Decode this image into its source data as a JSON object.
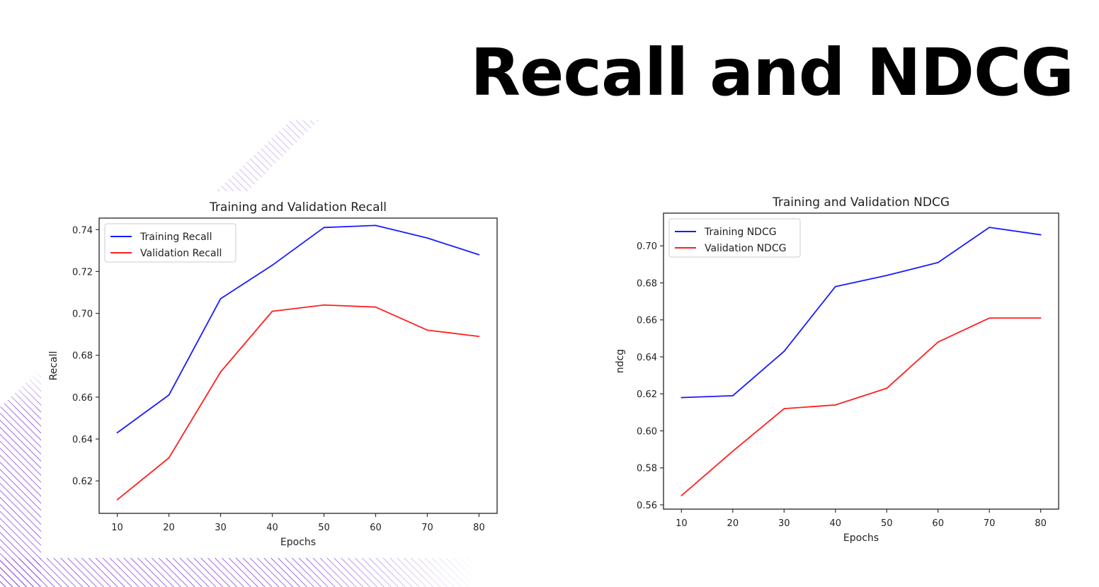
{
  "slide": {
    "title": "Recall and NDCG"
  },
  "colors": {
    "training": "#1a1aff",
    "validation": "#ff2020",
    "decoration_stripes": "#7a2ee0"
  },
  "chart_data": [
    {
      "type": "line",
      "title": "Training and Validation Recall",
      "xlabel": "Epochs",
      "ylabel": "Recall",
      "x": [
        10,
        20,
        30,
        40,
        50,
        60,
        70,
        80
      ],
      "xticks": [
        "10",
        "20",
        "30",
        "40",
        "50",
        "60",
        "70",
        "80"
      ],
      "xlim": [
        6.5,
        83.5
      ],
      "yticks": [
        "0.62",
        "0.64",
        "0.66",
        "0.68",
        "0.70",
        "0.72",
        "0.74"
      ],
      "ylim": [
        0.6045,
        0.7455
      ],
      "grid": false,
      "legend_position": "top-left",
      "series": [
        {
          "name": "Training Recall",
          "color": "#1a1aff",
          "values": [
            0.643,
            0.661,
            0.707,
            0.723,
            0.741,
            0.742,
            0.736,
            0.728
          ]
        },
        {
          "name": "Validation Recall",
          "color": "#ff2020",
          "values": [
            0.611,
            0.631,
            0.672,
            0.701,
            0.704,
            0.703,
            0.692,
            0.689
          ]
        }
      ]
    },
    {
      "type": "line",
      "title": "Training and Validation NDCG",
      "xlabel": "Epochs",
      "ylabel": "ndcg",
      "x": [
        10,
        20,
        30,
        40,
        50,
        60,
        70,
        80
      ],
      "xticks": [
        "10",
        "20",
        "30",
        "40",
        "50",
        "60",
        "70",
        "80"
      ],
      "xlim": [
        6.5,
        83.5
      ],
      "yticks": [
        "0.56",
        "0.58",
        "0.60",
        "0.62",
        "0.64",
        "0.66",
        "0.68",
        "0.70"
      ],
      "ylim": [
        0.5577,
        0.7177
      ],
      "grid": false,
      "legend_position": "top-left",
      "series": [
        {
          "name": "Training NDCG",
          "color": "#1a1aff",
          "values": [
            0.618,
            0.619,
            0.643,
            0.678,
            0.684,
            0.691,
            0.71,
            0.706
          ]
        },
        {
          "name": "Validation NDCG",
          "color": "#ff2020",
          "values": [
            0.565,
            0.589,
            0.612,
            0.614,
            0.623,
            0.648,
            0.661,
            0.661
          ]
        }
      ]
    }
  ]
}
